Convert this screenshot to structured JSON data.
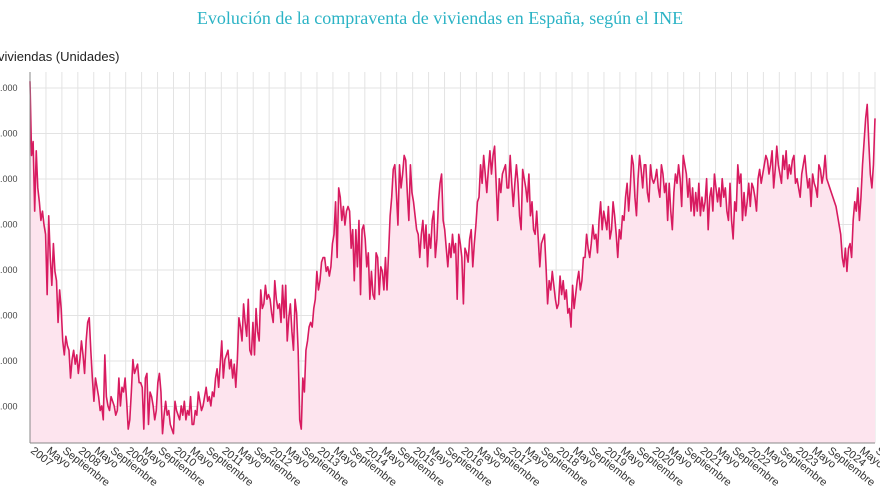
{
  "chart_data": {
    "type": "area",
    "title": "Evolución de la compraventa de viviendas en España, según el INE",
    "xlabel": "",
    "ylabel": "viviendas (Unidades)",
    "y_tick_labels": [
      ".000",
      ".000",
      ".000",
      ".000",
      ".000",
      ".000",
      ".000",
      ".000"
    ],
    "x_tick_labels": [
      "2007",
      "Mayo",
      "Septiembre",
      "2008",
      "Mayo",
      "Septiembre",
      "2009",
      "Mayo",
      "Septiembre",
      "2010",
      "Mayo",
      "Septiembre",
      "2011",
      "Mayo",
      "Septiembre",
      "2012",
      "Mayo",
      "Septiembre",
      "2013",
      "Mayo",
      "Septiembre",
      "2014",
      "Mayo",
      "Septiembre",
      "2015",
      "Mayo",
      "Septiembre",
      "2016",
      "Mayo",
      "Septiembre",
      "2017",
      "Mayo",
      "Septiembre",
      "2018",
      "Mayo",
      "Septiembre",
      "2019",
      "Mayo",
      "Septiembre",
      "2020",
      "Mayo",
      "Septiembre",
      "2021",
      "Mayo",
      "Septiembre",
      "2022",
      "Mayo",
      "Septiembre",
      "2023",
      "Mayo",
      "Septiembre",
      "2024",
      "Mayo",
      "Septiembre"
    ],
    "grid": true,
    "line_color": "#d81b60",
    "fill_color": "#fde4ee",
    "ylim": [
      0,
      80000
    ],
    "series": [
      {
        "values": [
          78000,
          62000,
          65000,
          50000,
          63000,
          55000,
          52000,
          48000,
          50000,
          47000,
          45000,
          32000,
          49000,
          40000,
          34000,
          43000,
          37000,
          35000,
          26000,
          33000,
          29000,
          22000,
          19000,
          23000,
          21000,
          20000,
          14000,
          18000,
          20000,
          17000,
          19000,
          15000,
          18000,
          22000,
          19000,
          15000,
          22000,
          26000,
          27000,
          20000,
          14000,
          9000,
          14000,
          12000,
          10000,
          7000,
          8000,
          5000,
          19000,
          10000,
          8000,
          7000,
          10000,
          9000,
          8000,
          6000,
          7000,
          14000,
          8000,
          12000,
          11000,
          14000,
          9000,
          3000,
          5000,
          11000,
          18000,
          15000,
          16000,
          17000,
          13000,
          13000,
          12000,
          3000,
          14000,
          15000,
          4000,
          11000,
          10000,
          8000,
          5000,
          7000,
          13000,
          15000,
          11000,
          2000,
          6000,
          9000,
          6000,
          7000,
          4000,
          3000,
          2000,
          9000,
          7000,
          6000,
          5000,
          8000,
          6000,
          9000,
          5000,
          7000,
          6000,
          10000,
          4000,
          4000,
          7000,
          6000,
          11000,
          9000,
          7000,
          8000,
          10000,
          12000,
          9000,
          10000,
          8000,
          11000,
          10000,
          14000,
          16000,
          12000,
          17000,
          22000,
          14000,
          18000,
          19000,
          20000,
          16000,
          18000,
          14000,
          17000,
          12000,
          18000,
          27000,
          25000,
          22000,
          30000,
          26000,
          23000,
          31000,
          20000,
          19000,
          26000,
          19000,
          29000,
          24000,
          22000,
          33000,
          29000,
          30000,
          34000,
          31000,
          32000,
          31000,
          28000,
          26000,
          35000,
          31000,
          29000,
          30000,
          26000,
          34000,
          27000,
          34000,
          22000,
          27000,
          30000,
          24000,
          20000,
          31000,
          28000,
          20000,
          5000,
          3000,
          14000,
          11000,
          20000,
          22000,
          25000,
          26000,
          25000,
          29000,
          31000,
          37000,
          33000,
          35000,
          39000,
          40000,
          40000,
          37000,
          38000,
          36000,
          38000,
          43000,
          45000,
          52000,
          40000,
          55000,
          53000,
          48000,
          51000,
          47000,
          50000,
          51000,
          50000,
          42000,
          46000,
          35000,
          46000,
          38000,
          48000,
          32000,
          46000,
          47000,
          44000,
          38000,
          41000,
          31000,
          37000,
          32000,
          31000,
          41000,
          40000,
          32000,
          38000,
          37000,
          33000,
          40000,
          33000,
          41000,
          49000,
          53000,
          59000,
          60000,
          54000,
          47000,
          60000,
          55000,
          58000,
          62000,
          61000,
          54000,
          48000,
          60000,
          54000,
          52000,
          49000,
          46000,
          45000,
          40000,
          45000,
          48000,
          42000,
          47000,
          38000,
          45000,
          42000,
          48000,
          50000,
          40000,
          44000,
          52000,
          56000,
          58000,
          48000,
          46000,
          42000,
          38000,
          43000,
          40000,
          45000,
          41000,
          43000,
          31000,
          45000,
          43000,
          40000,
          30000,
          42000,
          41000,
          39000,
          44000,
          46000,
          38000,
          43000,
          47000,
          52000,
          53000,
          60000,
          56000,
          62000,
          58000,
          54000,
          59000,
          63000,
          58000,
          62000,
          64000,
          56000,
          48000,
          57000,
          54000,
          58000,
          59000,
          60000,
          55000,
          55000,
          62000,
          56000,
          51000,
          56000,
          60000,
          56000,
          49000,
          46000,
          59000,
          57000,
          55000,
          52000,
          58000,
          49000,
          52000,
          46000,
          45000,
          50000,
          44000,
          38000,
          43000,
          44000,
          45000,
          38000,
          30000,
          35000,
          33000,
          37000,
          34000,
          31000,
          29000,
          30000,
          36000,
          32000,
          35000,
          31000,
          33000,
          28000,
          29000,
          25000,
          34000,
          29000,
          32000,
          35000,
          37000,
          33000,
          35000,
          40000,
          40000,
          45000,
          42000,
          40000,
          43000,
          47000,
          44000,
          45000,
          41000,
          48000,
          52000,
          46000,
          50000,
          48000,
          46000,
          51000,
          44000,
          46000,
          52000,
          49000,
          45000,
          40000,
          46000,
          44000,
          49000,
          48000,
          53000,
          56000,
          50000,
          55000,
          62000,
          60000,
          53000,
          49000,
          57000,
          62000,
          59000,
          55000,
          60000,
          60000,
          54000,
          52000,
          60000,
          57000,
          56000,
          57000,
          59000,
          55000,
          53000,
          60000,
          58000,
          54000,
          56000,
          48000,
          56000,
          50000,
          46000,
          54000,
          58000,
          56000,
          60000,
          57000,
          51000,
          62000,
          60000,
          58000,
          53000,
          57000,
          50000,
          55000,
          49000,
          54000,
          50000,
          56000,
          49000,
          53000,
          50000,
          52000,
          57000,
          46000,
          53000,
          55000,
          50000,
          58000,
          55000,
          52000,
          55000,
          51000,
          57000,
          53000,
          55000,
          50000,
          48000,
          56000,
          48000,
          44000,
          52000,
          50000,
          60000,
          56000,
          58000,
          48000,
          54000,
          49000,
          52000,
          56000,
          51000,
          56000,
          55000,
          53000,
          50000,
          57000,
          59000,
          56000,
          58000,
          60000,
          62000,
          61000,
          58000,
          60000,
          63000,
          55000,
          59000,
          64000,
          60000,
          58000,
          56000,
          62000,
          59000,
          63000,
          57000,
          60000,
          58000,
          61000,
          62000,
          56000,
          57000,
          55000,
          53000,
          58000,
          60000,
          62000,
          58000,
          55000,
          57000,
          51000,
          58000,
          56000,
          55000,
          53000,
          60000,
          59000,
          56000,
          58000,
          62000,
          57000,
          56000,
          55000,
          54000,
          53000,
          52000,
          51000,
          49000,
          47000,
          45000,
          40000,
          38000,
          42000,
          37000,
          42000,
          43000,
          40000,
          48000,
          52000,
          50000,
          55000,
          48000,
          53000,
          60000,
          65000,
          70000,
          73000,
          65000,
          58000,
          55000,
          60000,
          70000
        ]
      }
    ]
  }
}
